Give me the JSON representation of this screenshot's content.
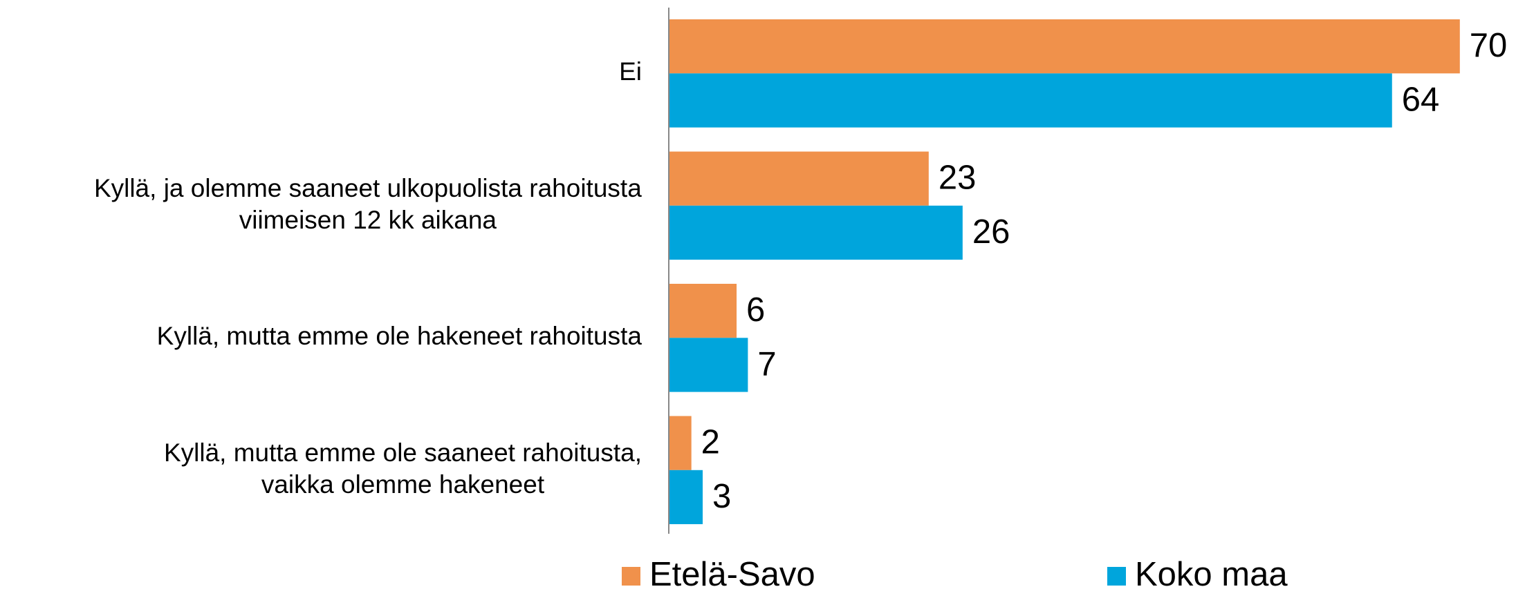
{
  "chart_data": {
    "type": "hbar",
    "categories": [
      "Ei",
      "Kyllä, ja olemme saaneet ulkopuolista rahoitusta\nviimeisen 12 kk aikana",
      "Kyllä, mutta emme ole hakeneet rahoitusta",
      "Kyllä, mutta emme ole saaneet rahoitusta,\nvaikka olemme hakeneet"
    ],
    "series": [
      {
        "name": "Etelä-Savo",
        "color": "#f0914b",
        "values": [
          70,
          23,
          6,
          2
        ]
      },
      {
        "name": "Koko maa",
        "color": "#00a5dc",
        "values": [
          64,
          26,
          7,
          3
        ]
      }
    ],
    "legend": "bottom"
  }
}
